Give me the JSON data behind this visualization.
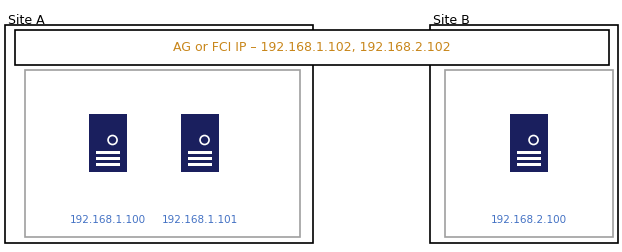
{
  "site_a_label": "Site A",
  "site_b_label": "Site B",
  "ag_fci_text": "AG or FCI IP – 192.168.1.102, 192.168.2.102",
  "ag_fci_text_color": "#c8861a",
  "ip1": "192.168.1.100",
  "ip2": "192.168.1.101",
  "ip3": "192.168.2.100",
  "ip_color": "#4472c4",
  "server_color": "#1a1f5e",
  "server_light_color": "#ffffff",
  "bg_color": "#ffffff",
  "inner_border_color": "#a0a0a0",
  "outer_border_color": "#000000",
  "site_label_fontsize": 9,
  "ip_fontsize": 7.5,
  "ag_fontsize": 9,
  "figw": 6.22,
  "figh": 2.52,
  "dpi": 100
}
